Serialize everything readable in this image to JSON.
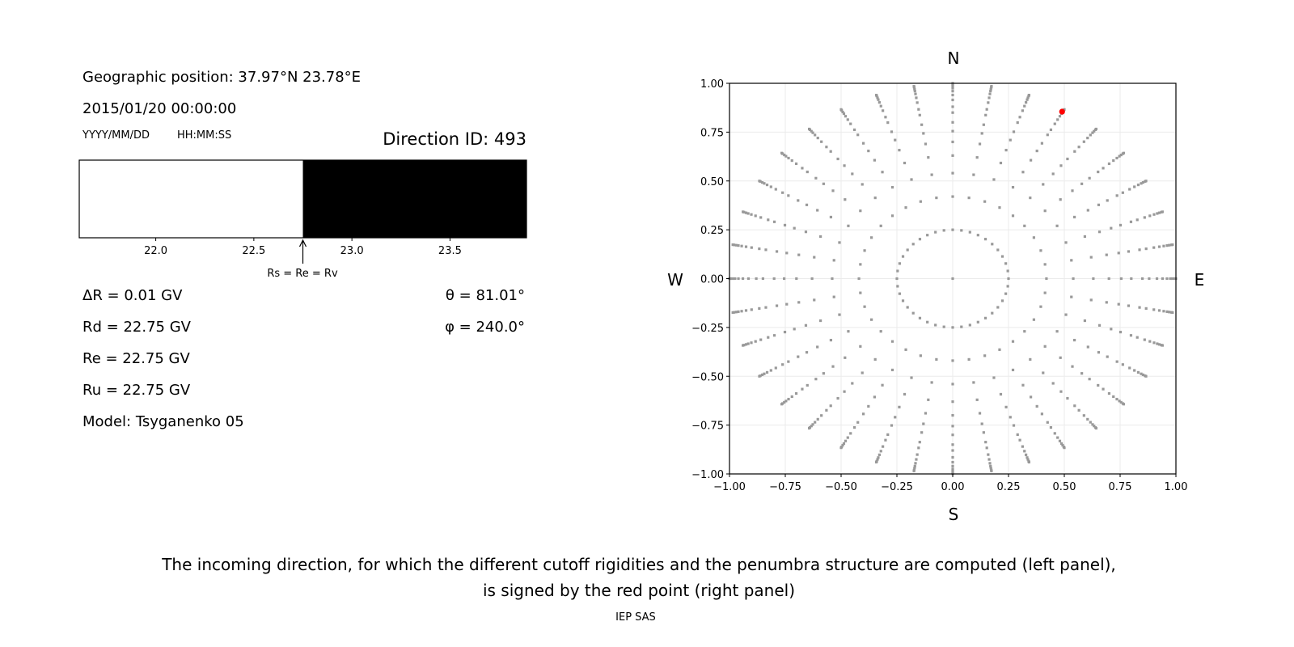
{
  "left_panel": {
    "geo_position": "Geographic position: 37.97°N 23.78°E",
    "datetime": "2015/01/20 00:00:00",
    "date_format": "YYYY/MM/DD",
    "time_format": "HH:MM:SS",
    "direction_id": "Direction ID: 493",
    "arrow_label": "Rs = Re = Rv",
    "delta_r": "ΔR = 0.01 GV",
    "rd": "Rd = 22.75 GV",
    "re": "Re = 22.75 GV",
    "ru": "Ru = 22.75 GV",
    "model": "Model: Tsyganenko 05",
    "theta": "θ = 81.01°",
    "phi": "φ = 240.0°"
  },
  "caption": {
    "line1": "The incoming direction, for which the different cutoff rigidities and the penumbra structure are computed (left panel),",
    "line2": "is signed by the red point (right panel)",
    "credit": "IEP SAS"
  },
  "chart_data": [
    {
      "type": "bar",
      "description_of_regions": "allowed (white) below cutoff, forbidden (black) above cutoff",
      "xlim": [
        21.61,
        23.89
      ],
      "xticks": [
        "22.0",
        "22.5",
        "23.0",
        "23.5"
      ],
      "regions": [
        {
          "from": 21.61,
          "to": 22.75,
          "color": "#ffffff"
        },
        {
          "from": 22.75,
          "to": 23.89,
          "color": "#000000"
        }
      ],
      "marker_value": 22.75
    },
    {
      "type": "scatter",
      "xlim": [
        -1.0,
        1.0
      ],
      "ylim": [
        -1.0,
        1.0
      ],
      "xticks": [
        "−1.00",
        "−0.75",
        "−0.50",
        "−0.25",
        "0.00",
        "0.25",
        "0.50",
        "0.75",
        "1.00"
      ],
      "yticks": [
        "1.00",
        "0.75",
        "0.50",
        "0.25",
        "0.00",
        "−0.25",
        "−0.50",
        "−0.75",
        "−1.00"
      ],
      "grid": true,
      "compass": {
        "north": "N",
        "south": "S",
        "west": "W",
        "east": "E"
      },
      "point_color": "#999999",
      "highlight_color": "#ff0000",
      "center_point": [
        0,
        0
      ],
      "inner_ring": {
        "radius": 0.25,
        "count": 40
      },
      "radial_lines": {
        "azimuth_step_deg": 10,
        "radii": [
          0.42,
          0.54,
          0.63,
          0.7,
          0.755,
          0.8,
          0.85,
          0.88,
          0.915,
          0.94,
          0.96,
          0.975,
          0.985,
          0.995,
          1.0
        ]
      },
      "highlight_point": [
        0.49,
        0.855
      ]
    }
  ]
}
